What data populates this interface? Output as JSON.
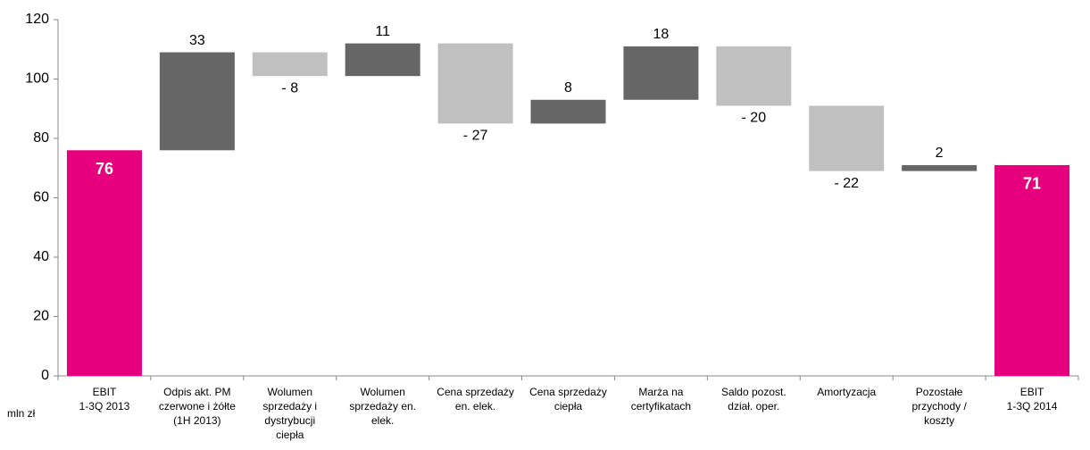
{
  "chart_data": {
    "type": "waterfall",
    "y_axis_label": "mln zł",
    "categories": [
      [
        "EBIT",
        "1-3Q 2013"
      ],
      [
        "Odpis akt. PM",
        "czerwone i żółte",
        "(1H 2013)"
      ],
      [
        "Wolumen",
        "sprzedaży i",
        "dystrybucji",
        "ciepła"
      ],
      [
        "Wolumen",
        "sprzedaży en.",
        "elek."
      ],
      [
        "Cena sprzedaży",
        "en. elek."
      ],
      [
        "Cena sprzedaży",
        "ciepła"
      ],
      [
        "Marża na",
        "certyfikatach"
      ],
      [
        "Saldo pozost.",
        "dział. oper."
      ],
      [
        "Amortyzacja"
      ],
      [
        "Pozostałe",
        "przychody /",
        "koszty"
      ],
      [
        "EBIT",
        "1-3Q 2014"
      ]
    ],
    "values": [
      76,
      33,
      -8,
      11,
      -27,
      8,
      18,
      -20,
      -22,
      2,
      71
    ],
    "value_labels": [
      "76",
      "33",
      "- 8",
      "11",
      "- 27",
      "8",
      "18",
      "- 20",
      "- 22",
      "2",
      "71"
    ],
    "is_total": [
      true,
      false,
      false,
      false,
      false,
      false,
      false,
      false,
      false,
      false,
      true
    ],
    "total_color": "#e6007e",
    "increase_color": "#666666",
    "decrease_color": "#c0c0c0",
    "ylim": [
      0,
      120
    ],
    "yticks": [
      0,
      20,
      40,
      60,
      80,
      100,
      120
    ],
    "grid": false
  }
}
